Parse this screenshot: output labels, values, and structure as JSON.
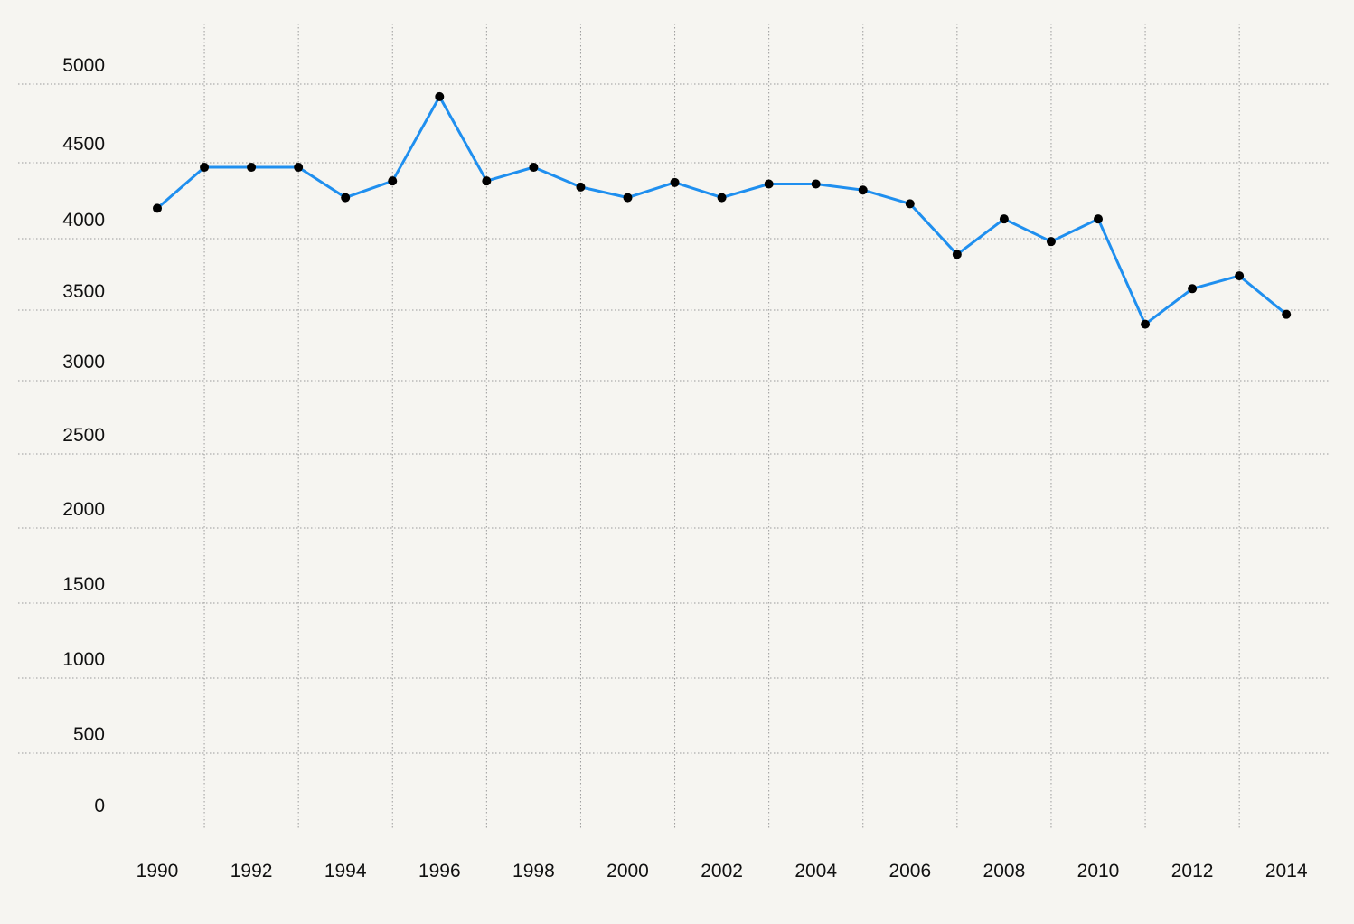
{
  "chart_data": {
    "type": "line",
    "title": "",
    "xlabel": "",
    "ylabel": "",
    "x": [
      1990,
      1991,
      1992,
      1993,
      1994,
      1995,
      1996,
      1997,
      1998,
      1999,
      2000,
      2001,
      2002,
      2003,
      2004,
      2005,
      2006,
      2007,
      2008,
      2009,
      2010,
      2011,
      2012,
      2013,
      2014
    ],
    "series": [
      {
        "values": [
          4200,
          4470,
          4470,
          4470,
          4270,
          4380,
          4920,
          4380,
          4470,
          4340,
          4270,
          4370,
          4270,
          4360,
          4360,
          4320,
          4230,
          3890,
          4130,
          3980,
          4130,
          3400,
          3650,
          3740,
          3470
        ]
      }
    ],
    "x_ticks": [
      "1990",
      "1992",
      "1994",
      "1996",
      "1998",
      "2000",
      "2002",
      "2004",
      "2006",
      "2008",
      "2010",
      "2012",
      "2014"
    ],
    "y_ticks": [
      "0",
      "500",
      "1000",
      "1500",
      "2000",
      "2500",
      "3000",
      "3500",
      "4000",
      "4500",
      "5000"
    ],
    "ylim": [
      0,
      5000
    ],
    "grid": true,
    "colors": {
      "line": "#1f8fef",
      "points": "#000000",
      "grid": "#9b9b9b",
      "background": "#f6f5f1"
    }
  }
}
